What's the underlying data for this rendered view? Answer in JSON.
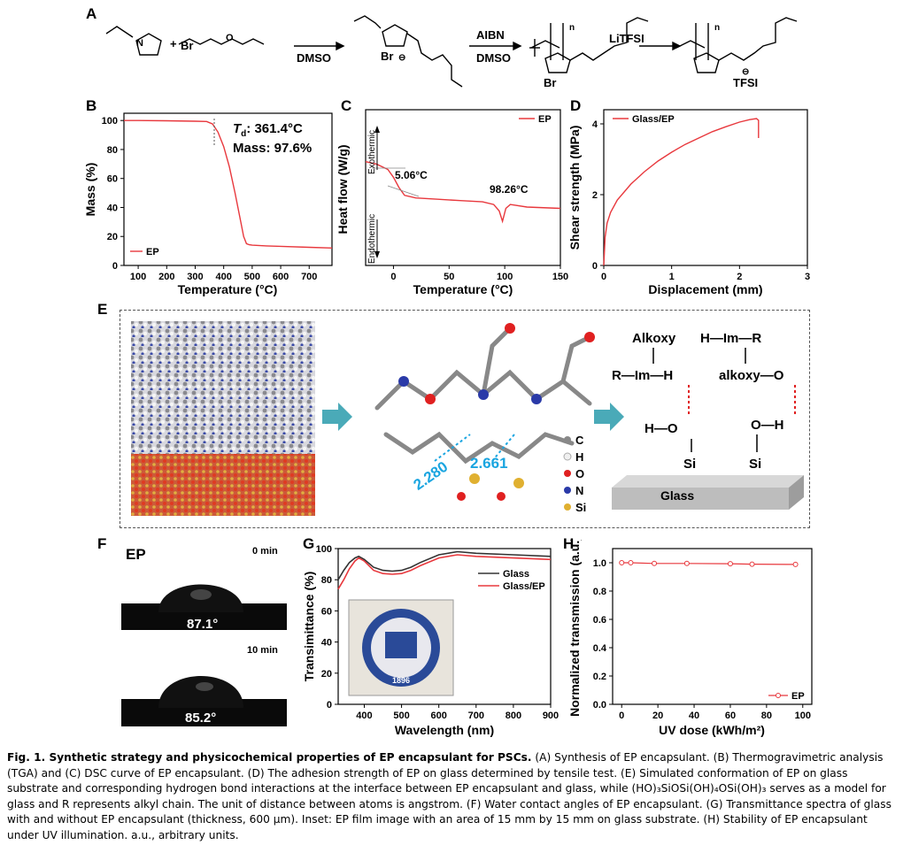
{
  "panels": {
    "A": "A",
    "B": "B",
    "C": "C",
    "D": "D",
    "E": "E",
    "F": "F",
    "G": "G",
    "H": "H"
  },
  "scheme": {
    "br": "Br",
    "plus": "+",
    "step1_reagent": "DMSO",
    "step2_reagent_top": "AIBN",
    "step2_reagent_bottom": "DMSO",
    "step3_reagent": "LiTFSI",
    "tfsi": "TFSI",
    "n": "n",
    "n_atom": "N",
    "plus_charge": "+",
    "minus_charge": "⊖",
    "o_atom": "O"
  },
  "panel_B": {
    "ylabel": "Mass (%)",
    "xlabel": "Temperature (°C)",
    "annotation_td": "T",
    "annotation_td_sub": "d",
    "annotation_td_value": ": 361.4°C",
    "annotation_mass": "Mass: 97.6%",
    "legend": "EP",
    "xticks": [
      "100",
      "200",
      "300",
      "400",
      "500",
      "600",
      "700"
    ],
    "yticks": [
      "0",
      "20",
      "40",
      "60",
      "80",
      "100"
    ]
  },
  "panel_C": {
    "ylabel": "Heat flow (W/g)",
    "xlabel": "Temperature (°C)",
    "exo": "Exothermic",
    "endo": "Endothermic",
    "annotation_tg": "5.06°C",
    "annotation_tm": "98.26°C",
    "legend": "EP",
    "xticks": [
      "0",
      "50",
      "100",
      "150"
    ]
  },
  "panel_D": {
    "ylabel": "Shear strength (MPa)",
    "xlabel": "Displacement (mm)",
    "legend": "Glass/EP",
    "xticks": [
      "0",
      "1",
      "2",
      "3"
    ],
    "yticks": [
      "0",
      "2",
      "4"
    ]
  },
  "panel_E": {
    "distance1": "2.280",
    "distance2": "2.661",
    "legend": [
      "C",
      "H",
      "O",
      "N",
      "Si"
    ],
    "schematic": {
      "alkoxy_top": "Alkoxy",
      "r_im_h": "R—Im—H",
      "h_im_r": "H—Im—R",
      "alkoxy_o": "alkoxy—O",
      "h_o": "H—O",
      "o_h": "O—H",
      "si": "Si",
      "glass": "Glass"
    }
  },
  "panel_F": {
    "label": "EP",
    "time1": "0 min",
    "angle1": "87.1°",
    "time2": "10 min",
    "angle2": "85.2°"
  },
  "panel_G": {
    "ylabel": "Transimittance (%)",
    "xlabel": "Wavelength (nm)",
    "legend": [
      "Glass",
      "Glass/EP"
    ],
    "inset_text": "1896",
    "xticks": [
      "400",
      "500",
      "600",
      "700",
      "800",
      "900"
    ],
    "yticks": [
      "0",
      "20",
      "40",
      "60",
      "80",
      "100"
    ]
  },
  "panel_H": {
    "ylabel": "Normalized transmission (a.u.)",
    "xlabel": "UV dose (kWh/m²)",
    "legend": "EP",
    "xticks": [
      "0",
      "20",
      "40",
      "60",
      "80",
      "100"
    ],
    "yticks": [
      "0.0",
      "0.2",
      "0.4",
      "0.6",
      "0.8",
      "1.0"
    ]
  },
  "chart_data": [
    {
      "panel": "B",
      "type": "line",
      "xlabel": "Temperature (°C)",
      "ylabel": "Mass (%)",
      "xlim": [
        50,
        780
      ],
      "ylim": [
        0,
        105
      ],
      "series": [
        {
          "name": "EP",
          "x": [
            50,
            100,
            200,
            300,
            340,
            361,
            380,
            400,
            420,
            440,
            460,
            470,
            480,
            490,
            500,
            550,
            600,
            700,
            780
          ],
          "y": [
            100,
            100,
            99.8,
            99.5,
            99.3,
            97.6,
            92,
            82,
            68,
            50,
            30,
            20,
            15,
            14.3,
            14,
            13.5,
            13.2,
            12.5,
            12
          ]
        }
      ]
    },
    {
      "panel": "C",
      "type": "line",
      "xlabel": "Temperature (°C)",
      "ylabel": "Heat flow (W/g)",
      "xlim": [
        -25,
        150
      ],
      "series": [
        {
          "name": "EP",
          "x": [
            -25,
            -15,
            -5,
            0,
            5,
            10,
            20,
            40,
            60,
            80,
            90,
            95,
            98,
            101,
            105,
            120,
            150
          ],
          "y": [
            0.7,
            0.69,
            0.67,
            0.64,
            0.6,
            0.57,
            0.56,
            0.555,
            0.55,
            0.545,
            0.535,
            0.51,
            0.47,
            0.52,
            0.535,
            0.525,
            0.52
          ]
        }
      ]
    },
    {
      "panel": "D",
      "type": "line",
      "xlabel": "Displacement (mm)",
      "ylabel": "Shear strength (MPa)",
      "xlim": [
        0,
        3
      ],
      "ylim": [
        0,
        4.4
      ],
      "series": [
        {
          "name": "Glass/EP",
          "x": [
            0,
            0.02,
            0.05,
            0.1,
            0.2,
            0.4,
            0.6,
            0.8,
            1.0,
            1.2,
            1.4,
            1.6,
            1.8,
            2.0,
            2.15,
            2.25,
            2.28,
            2.28
          ],
          "y": [
            0,
            0.8,
            1.2,
            1.5,
            1.85,
            2.3,
            2.65,
            2.95,
            3.2,
            3.42,
            3.6,
            3.78,
            3.92,
            4.05,
            4.12,
            4.15,
            4.1,
            3.6
          ]
        }
      ]
    },
    {
      "panel": "G",
      "type": "line",
      "xlabel": "Wavelength (nm)",
      "ylabel": "Transimittance (%)",
      "xlim": [
        330,
        900
      ],
      "ylim": [
        0,
        100
      ],
      "series": [
        {
          "name": "Glass",
          "x": [
            330,
            345,
            360,
            375,
            385,
            400,
            425,
            450,
            475,
            500,
            525,
            550,
            600,
            650,
            700,
            800,
            900
          ],
          "y": [
            80,
            86,
            91,
            94,
            95,
            93,
            88,
            86,
            85.5,
            86,
            88,
            91,
            96,
            98,
            97,
            96,
            95
          ]
        },
        {
          "name": "Glass/EP",
          "x": [
            330,
            345,
            360,
            375,
            385,
            400,
            425,
            450,
            475,
            500,
            525,
            550,
            600,
            650,
            700,
            800,
            900
          ],
          "y": [
            74,
            80,
            87,
            92,
            94,
            92,
            86,
            84,
            83.5,
            84,
            86,
            89,
            94,
            96,
            95,
            94,
            93
          ]
        }
      ]
    },
    {
      "panel": "H",
      "type": "line",
      "xlabel": "UV dose (kWh/m²)",
      "ylabel": "Normalized transmission (a.u.)",
      "xlim": [
        -5,
        105
      ],
      "ylim": [
        0,
        1.1
      ],
      "series": [
        {
          "name": "EP",
          "x": [
            0,
            5,
            18,
            36,
            60,
            72,
            96
          ],
          "y": [
            1.0,
            1.0,
            0.995,
            0.995,
            0.993,
            0.99,
            0.988
          ]
        }
      ]
    }
  ],
  "caption": {
    "fig": "Fig. 1. Synthetic strategy and physicochemical properties of EP encapsulant for PSCs.",
    "body": " (A) Synthesis of EP encapsulant. (B) Thermogravimetric analysis (TGA) and (C) DSC curve of EP encapsulant. (D) The adhesion strength of EP on glass determined by tensile test. (E) Simulated conformation of EP on glass substrate and corresponding hydrogen bond interactions at the interface between EP encapsulant and glass, while (HO)₃SiOSi(OH)₄OSi(OH)₃ serves as a model for glass and R represents alkyl chain. The unit of distance between atoms is angstrom. (F) Water contact angles of EP encapsulant. (G) Transmittance spectra of glass with and without EP encapsulant (thickness, 600 μm). Inset: EP film image with an area of 15 mm by 15 mm on glass substrate. (H) Stability of EP encapsulant under UV illumination. a.u., arbitrary units."
  },
  "colors": {
    "curve": "#e8383d",
    "glass": "#333333",
    "teal": "#4aaab8",
    "cyan": "#1aa5e0"
  }
}
